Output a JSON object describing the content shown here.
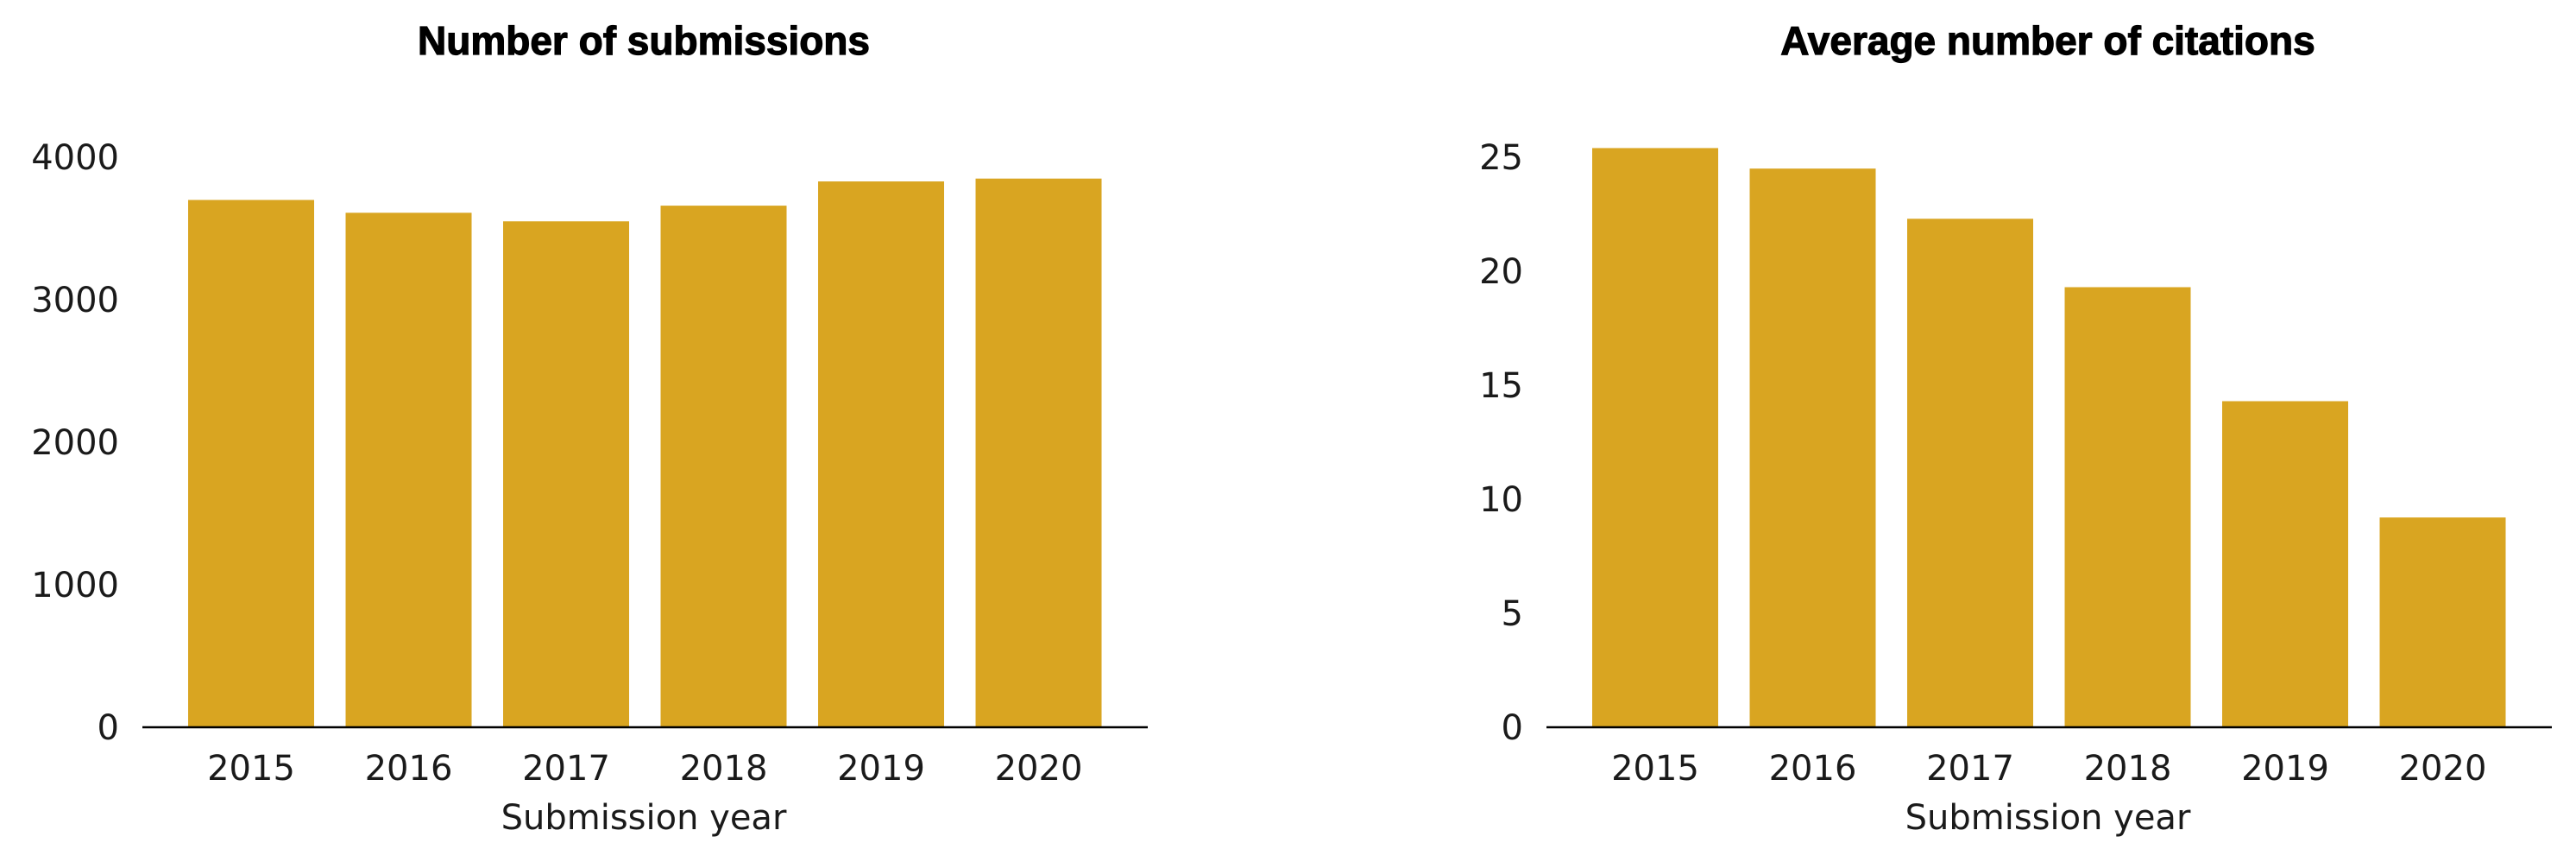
{
  "colors": {
    "bar": "#D9A521",
    "axis": "#000000",
    "text": "#1a1a1a"
  },
  "chart_data": [
    {
      "type": "bar",
      "title": "Number of submissions",
      "xlabel": "Submission year",
      "ylabel": "",
      "categories": [
        "2015",
        "2016",
        "2017",
        "2018",
        "2019",
        "2020"
      ],
      "values": [
        3700,
        3610,
        3550,
        3660,
        3830,
        3850
      ],
      "ylim": [
        0,
        4000
      ],
      "yticks": [
        "0",
        "1000",
        "2000",
        "3000",
        "4000"
      ],
      "grid": false,
      "legend": "none"
    },
    {
      "type": "bar",
      "title": "Average number of citations",
      "xlabel": "Submission year",
      "ylabel": "",
      "categories": [
        "2015",
        "2016",
        "2017",
        "2018",
        "2019",
        "2020"
      ],
      "values": [
        25.4,
        24.5,
        22.3,
        19.3,
        14.3,
        9.2
      ],
      "ylim": [
        0,
        25
      ],
      "yticks": [
        "0",
        "5",
        "10",
        "15",
        "20",
        "25"
      ],
      "grid": false,
      "legend": "none"
    }
  ]
}
